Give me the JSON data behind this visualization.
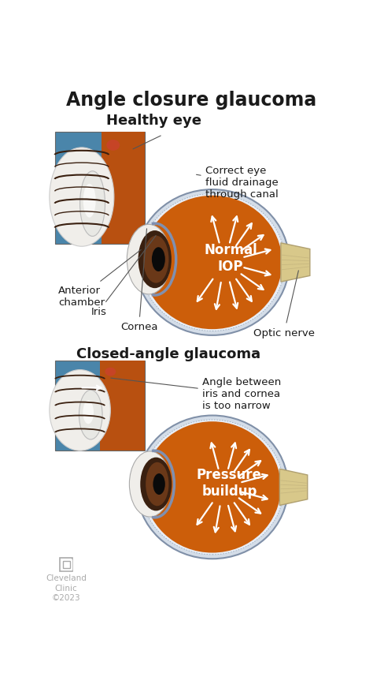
{
  "title": "Angle closure glaucoma",
  "title_fontsize": 17,
  "title_fontweight": "bold",
  "bg_color": "#ffffff",
  "section1_title": "Healthy eye",
  "section2_title": "Closed-angle glaucoma",
  "section_title_fontsize": 13,
  "section_title_fontweight": "bold",
  "eye_orange": "#cc5e0a",
  "eye_sclera_outer": "#d4dde8",
  "eye_sclera_inner": "#e8edf5",
  "optic_nerve_color": "#d8c88a",
  "arrow_color": "#ffffff",
  "label_color": "#1a1a1a",
  "label_fontsize": 9.5,
  "cleveland_color": "#aaaaaa",
  "cleveland_fontsize": 7.5,
  "annotation1": "Correct eye\nfluid drainage\nthrough canal",
  "annotation2": "Angle between\niris and cornea\nis too narrow",
  "center_label1": "Normal\nIOP",
  "center_label2": "Pressure\nbuildup",
  "label_anterior": "Anterior\nchamber",
  "label_iris": "Iris",
  "label_cornea": "Cornea",
  "label_optic": "Optic nerve",
  "inset_blue": "#4a85aa",
  "iris_dark": "#3a2010",
  "iris_medium": "#6a3818",
  "sclera_white": "#f0eeea",
  "cornea_blue": "#8090b0"
}
